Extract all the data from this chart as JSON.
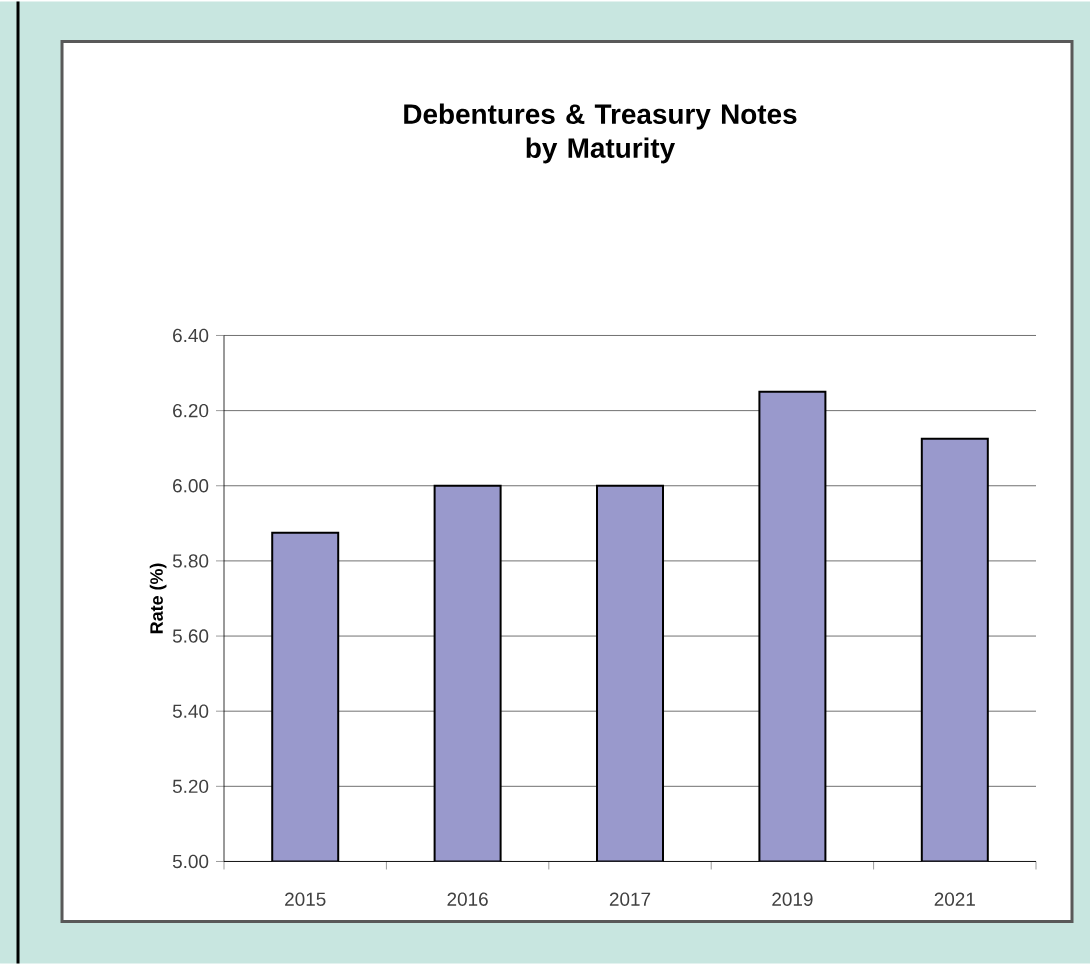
{
  "chart_data": {
    "type": "bar",
    "title": "Debentures & Treasury Notes\nby Maturity",
    "ylabel": "Rate (%)",
    "categories": [
      "2015",
      "2016",
      "2017",
      "2019",
      "2021"
    ],
    "values": [
      5.875,
      6.0,
      6.0,
      6.25,
      6.125
    ],
    "color": "#9999cc",
    "ylim": [
      5.0,
      6.4
    ],
    "yticks": [
      {
        "value": 5.0,
        "label": "5.00"
      },
      {
        "value": 5.2,
        "label": "5.20"
      },
      {
        "value": 5.4,
        "label": "5.40"
      },
      {
        "value": 5.6,
        "label": "5.60"
      },
      {
        "value": 5.8,
        "label": "5.80"
      },
      {
        "value": 6.0,
        "label": "6.00"
      },
      {
        "value": 6.2,
        "label": "6.20"
      },
      {
        "value": 6.4,
        "label": "6.40"
      }
    ],
    "grid": "y"
  }
}
